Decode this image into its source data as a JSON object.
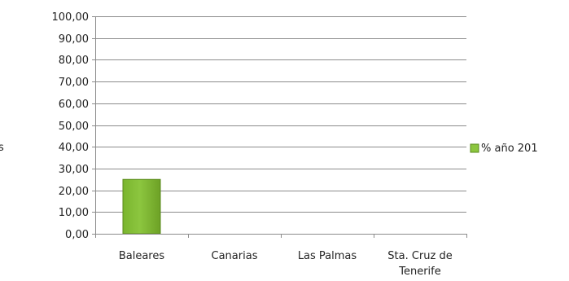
{
  "chart_data": {
    "type": "bar",
    "categories": [
      "Baleares",
      "Canarias",
      "Las Palmas",
      "Sta. Cruz de Tenerife"
    ],
    "category_lines": [
      [
        "Baleares"
      ],
      [
        "Canarias"
      ],
      [
        "Las Palmas"
      ],
      [
        "Sta. Cruz de",
        "Tenerife"
      ]
    ],
    "series": [
      {
        "name": "% año 201",
        "values": [
          25,
          0,
          0,
          0
        ],
        "color": "#8cc63f"
      }
    ],
    "y_tick_labels": [
      "0,00",
      "10,00",
      "20,00",
      "30,00",
      "40,00",
      "50,00",
      "60,00",
      "70,00",
      "80,00",
      "90,00",
      "100,00"
    ],
    "ylim": [
      0,
      100
    ],
    "ylabel": "s",
    "grid": true,
    "legend_position": "right"
  }
}
